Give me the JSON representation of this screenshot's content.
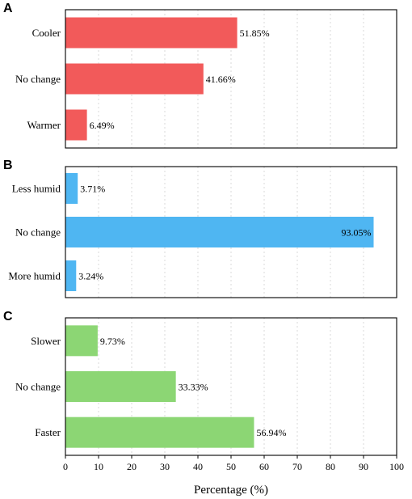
{
  "chart_data": [
    {
      "type": "bar",
      "orientation": "horizontal",
      "panel": "A",
      "categories": [
        "Cooler",
        "No change",
        "Warmer"
      ],
      "values": [
        51.85,
        41.66,
        6.49
      ],
      "value_labels": [
        "51.85%",
        "41.66%",
        "6.49%"
      ],
      "color": "#f25a5a",
      "xlim": [
        0,
        100
      ],
      "grid": true
    },
    {
      "type": "bar",
      "orientation": "horizontal",
      "panel": "B",
      "categories": [
        "Less humid",
        "No change",
        "More humid"
      ],
      "values": [
        3.71,
        93.05,
        3.24
      ],
      "value_labels": [
        "3.71%",
        "93.05%",
        "3.24%"
      ],
      "color": "#4fb6f2",
      "xlim": [
        0,
        100
      ],
      "grid": true
    },
    {
      "type": "bar",
      "orientation": "horizontal",
      "panel": "C",
      "categories": [
        "Slower",
        "No change",
        "Faster"
      ],
      "values": [
        9.73,
        33.33,
        56.94
      ],
      "value_labels": [
        "9.73%",
        "33.33%",
        "56.94%"
      ],
      "color": "#8cd674",
      "xlim": [
        0,
        100
      ],
      "grid": true
    }
  ],
  "x_axis": {
    "label": "Percentage (%)",
    "ticks": [
      "0",
      "10",
      "20",
      "30",
      "40",
      "50",
      "60",
      "70",
      "80",
      "90",
      "100"
    ]
  }
}
